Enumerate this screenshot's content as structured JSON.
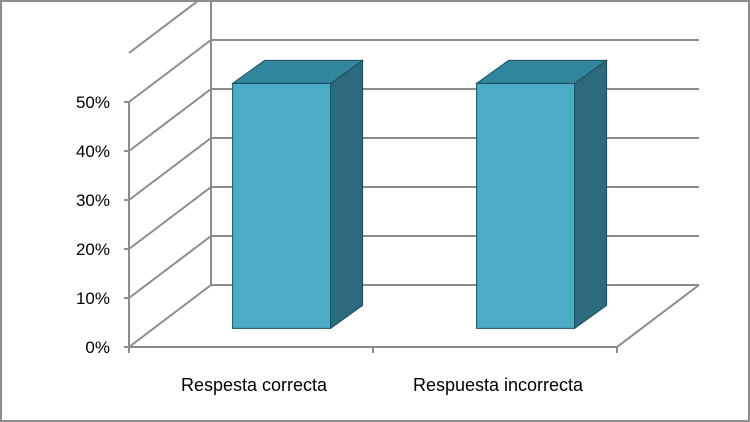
{
  "chart_data": {
    "type": "bar",
    "three_d": true,
    "title": "",
    "xlabel": "",
    "ylabel": "",
    "categories": [
      "Respesta correcta",
      "Respuesta incorrecta"
    ],
    "values": [
      0.5,
      0.5
    ],
    "ylim": [
      0,
      0.5
    ],
    "yticks": [
      0,
      0.1,
      0.2,
      0.3,
      0.4,
      0.5
    ],
    "ytick_labels": [
      "0%",
      "10%",
      "20%",
      "30%",
      "40%",
      "50%"
    ],
    "grid": true,
    "legend": "none",
    "colors": {
      "bar_front": "#4bacc6",
      "bar_top": "#31859c",
      "bar_side": "#2c6a7e",
      "gridline": "#8c8c8c",
      "outline": "#1f4e5c"
    }
  }
}
